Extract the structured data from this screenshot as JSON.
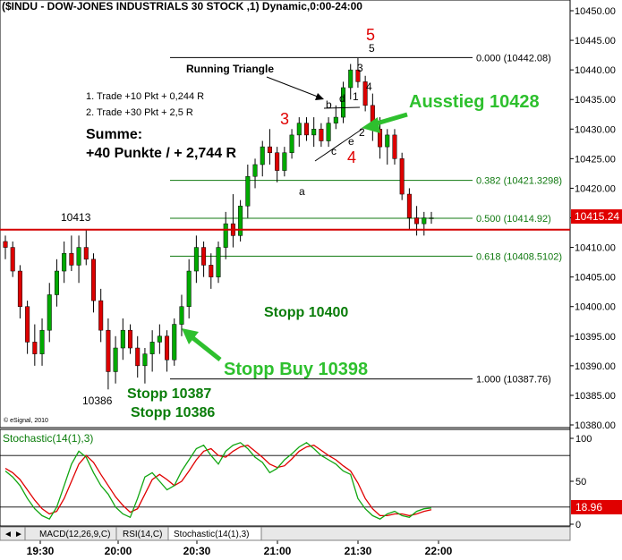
{
  "header": {
    "title": "($INDU - DOW-JONES INDUSTRIALS 30 STOCK ,1) Dynamic,0:00-24:00"
  },
  "colors": {
    "up": "#00aa00",
    "down": "#dd0000",
    "wick": "#000000",
    "fib_line": "#117a11",
    "red_line": "#d40000",
    "green_text": "#2ec02e",
    "dark_green_text": "#0a7d0a",
    "stoch_k": "#11a611",
    "stoch_d": "#e00000",
    "price_box": "#e00000"
  },
  "annotations": {
    "running_triangle": "Running Triangle",
    "trade1": "1. Trade +10 Pkt + 0,244 R",
    "trade2": "2. Trade +30 Pkt + 2,5 R",
    "summe": "Summe:",
    "summe_value": "+40 Punkte / + 2,744 R",
    "ausstieg": "Ausstieg 10428",
    "stopp_10400": "Stopp 10400",
    "stopp_buy": "Stopp Buy 10398",
    "stopp_10387": "Stopp 10387",
    "stopp_10386": "Stopp 10386",
    "label_10413": "10413",
    "label_10386": "10386",
    "wave_3": "3",
    "wave_4": "4",
    "wave_5_red": "5",
    "wave_5": "5",
    "wave_a": "a",
    "wave_b": "b",
    "wave_c": "c",
    "wave_d": "d",
    "wave_e": "e",
    "sub_1": "1",
    "sub_2": "2",
    "sub_3": "3",
    "sub_4": "4",
    "copyright": "© eSignal, 2010"
  },
  "fib_levels": [
    {
      "label": "0.000 (10442.08)",
      "value": 10442.08
    },
    {
      "label": "0.382 (10421.3298)",
      "value": 10421.3298
    },
    {
      "label": "0.500 (10414.92)",
      "value": 10414.92
    },
    {
      "label": "0.618 (10408.5102)",
      "value": 10408.5102
    },
    {
      "label": "1.000 (10387.76)",
      "value": 10387.76
    }
  ],
  "red_level": 10413,
  "price_axis": {
    "ticks": [
      "10450.00",
      "10445.00",
      "10440.00",
      "10435.00",
      "10430.00",
      "10425.00",
      "10420.00",
      "10415.00",
      "10410.00",
      "10405.00",
      "10400.00",
      "10395.00",
      "10390.00",
      "10385.00",
      "10380.00"
    ],
    "last_price": "10415.24"
  },
  "stoch_axis": {
    "ticks": [
      "100",
      "50",
      "0"
    ],
    "last_value": "18.96",
    "title": "Stochastic(14(1),3)"
  },
  "time_axis": {
    "ticks": [
      "19:30",
      "20:00",
      "20:30",
      "21:00",
      "21:30",
      "22:00"
    ]
  },
  "tabs": [
    {
      "label": "MACD(12,26,9,C)"
    },
    {
      "label": "RSI(14,C)"
    },
    {
      "label": "Stochastic(14(1),3)"
    }
  ],
  "chart_data": {
    "type": "candlestick",
    "title": "($INDU - DOW-JONES INDUSTRIALS 30 STOCK ,1) Dynamic,0:00-24:00",
    "ylim": [
      10380,
      10450
    ],
    "candles": [
      {
        "o": 10411,
        "h": 10412,
        "l": 10408,
        "c": 10410
      },
      {
        "o": 10410,
        "h": 10411,
        "l": 10405,
        "c": 10406
      },
      {
        "o": 10406,
        "h": 10407,
        "l": 10398,
        "c": 10400
      },
      {
        "o": 10400,
        "h": 10401,
        "l": 10392,
        "c": 10394
      },
      {
        "o": 10394,
        "h": 10397,
        "l": 10390,
        "c": 10392
      },
      {
        "o": 10392,
        "h": 10398,
        "l": 10390,
        "c": 10396
      },
      {
        "o": 10396,
        "h": 10404,
        "l": 10394,
        "c": 10402
      },
      {
        "o": 10402,
        "h": 10408,
        "l": 10400,
        "c": 10406
      },
      {
        "o": 10406,
        "h": 10411,
        "l": 10404,
        "c": 10409
      },
      {
        "o": 10409,
        "h": 10412,
        "l": 10406,
        "c": 10407
      },
      {
        "o": 10407,
        "h": 10412,
        "l": 10404,
        "c": 10410
      },
      {
        "o": 10410,
        "h": 10413,
        "l": 10407,
        "c": 10408
      },
      {
        "o": 10408,
        "h": 10409,
        "l": 10399,
        "c": 10401
      },
      {
        "o": 10401,
        "h": 10403,
        "l": 10394,
        "c": 10396
      },
      {
        "o": 10396,
        "h": 10398,
        "l": 10386,
        "c": 10389
      },
      {
        "o": 10389,
        "h": 10395,
        "l": 10387,
        "c": 10393
      },
      {
        "o": 10393,
        "h": 10398,
        "l": 10391,
        "c": 10396
      },
      {
        "o": 10396,
        "h": 10397,
        "l": 10392,
        "c": 10393
      },
      {
        "o": 10393,
        "h": 10395,
        "l": 10388,
        "c": 10390
      },
      {
        "o": 10390,
        "h": 10393,
        "l": 10387,
        "c": 10392
      },
      {
        "o": 10392,
        "h": 10396,
        "l": 10389,
        "c": 10394
      },
      {
        "o": 10394,
        "h": 10397,
        "l": 10392,
        "c": 10395
      },
      {
        "o": 10395,
        "h": 10396,
        "l": 10389,
        "c": 10391
      },
      {
        "o": 10391,
        "h": 10398,
        "l": 10390,
        "c": 10397
      },
      {
        "o": 10397,
        "h": 10402,
        "l": 10395,
        "c": 10400
      },
      {
        "o": 10400,
        "h": 10408,
        "l": 10398,
        "c": 10406
      },
      {
        "o": 10406,
        "h": 10412,
        "l": 10404,
        "c": 10410
      },
      {
        "o": 10410,
        "h": 10411,
        "l": 10405,
        "c": 10407
      },
      {
        "o": 10407,
        "h": 10409,
        "l": 10403,
        "c": 10405
      },
      {
        "o": 10405,
        "h": 10411,
        "l": 10404,
        "c": 10410
      },
      {
        "o": 10410,
        "h": 10416,
        "l": 10408,
        "c": 10414
      },
      {
        "o": 10414,
        "h": 10419,
        "l": 10410,
        "c": 10412
      },
      {
        "o": 10412,
        "h": 10418,
        "l": 10411,
        "c": 10417
      },
      {
        "o": 10417,
        "h": 10424,
        "l": 10415,
        "c": 10422
      },
      {
        "o": 10422,
        "h": 10425,
        "l": 10420,
        "c": 10424
      },
      {
        "o": 10424,
        "h": 10428,
        "l": 10422,
        "c": 10427
      },
      {
        "o": 10427,
        "h": 10430,
        "l": 10424,
        "c": 10426
      },
      {
        "o": 10426,
        "h": 10427,
        "l": 10421,
        "c": 10423
      },
      {
        "o": 10423,
        "h": 10427,
        "l": 10422,
        "c": 10426
      },
      {
        "o": 10426,
        "h": 10430,
        "l": 10425,
        "c": 10429
      },
      {
        "o": 10429,
        "h": 10432,
        "l": 10427,
        "c": 10431
      },
      {
        "o": 10431,
        "h": 10432,
        "l": 10428,
        "c": 10429
      },
      {
        "o": 10429,
        "h": 10432,
        "l": 10427,
        "c": 10430
      },
      {
        "o": 10430,
        "h": 10431,
        "l": 10427,
        "c": 10428
      },
      {
        "o": 10428,
        "h": 10432,
        "l": 10427,
        "c": 10431
      },
      {
        "o": 10431,
        "h": 10434,
        "l": 10430,
        "c": 10432
      },
      {
        "o": 10432,
        "h": 10438,
        "l": 10431,
        "c": 10437
      },
      {
        "o": 10437,
        "h": 10441,
        "l": 10435,
        "c": 10440
      },
      {
        "o": 10440,
        "h": 10442,
        "l": 10437,
        "c": 10438
      },
      {
        "o": 10438,
        "h": 10439,
        "l": 10433,
        "c": 10434
      },
      {
        "o": 10434,
        "h": 10436,
        "l": 10428,
        "c": 10430
      },
      {
        "o": 10430,
        "h": 10432,
        "l": 10425,
        "c": 10427
      },
      {
        "o": 10427,
        "h": 10430,
        "l": 10424,
        "c": 10429
      },
      {
        "o": 10429,
        "h": 10430,
        "l": 10424,
        "c": 10425
      },
      {
        "o": 10425,
        "h": 10426,
        "l": 10418,
        "c": 10419
      },
      {
        "o": 10419,
        "h": 10420,
        "l": 10413,
        "c": 10415
      },
      {
        "o": 10415,
        "h": 10417,
        "l": 10412,
        "c": 10414
      },
      {
        "o": 10414,
        "h": 10416,
        "l": 10412,
        "c": 10415
      },
      {
        "o": 10415,
        "h": 10416,
        "l": 10414,
        "c": 10415
      }
    ],
    "stochastic_k": [
      62,
      55,
      45,
      30,
      18,
      10,
      6,
      20,
      45,
      70,
      85,
      78,
      60,
      45,
      35,
      20,
      12,
      8,
      30,
      55,
      60,
      50,
      40,
      45,
      62,
      75,
      88,
      92,
      80,
      70,
      85,
      92,
      95,
      88,
      78,
      72,
      60,
      65,
      75,
      82,
      90,
      95,
      88,
      80,
      75,
      70,
      62,
      58,
      30,
      18,
      10,
      6,
      12,
      15,
      10,
      8,
      15,
      18,
      19
    ],
    "stochastic_d": [
      65,
      60,
      52,
      40,
      28,
      18,
      12,
      15,
      30,
      50,
      70,
      80,
      72,
      58,
      45,
      32,
      22,
      14,
      18,
      35,
      52,
      58,
      52,
      45,
      50,
      62,
      75,
      85,
      88,
      80,
      78,
      85,
      90,
      92,
      85,
      78,
      70,
      66,
      68,
      76,
      85,
      90,
      92,
      86,
      80,
      75,
      68,
      62,
      48,
      30,
      18,
      10,
      10,
      12,
      12,
      10,
      12,
      15,
      17
    ],
    "stochastic_ylim": [
      0,
      100
    ]
  }
}
